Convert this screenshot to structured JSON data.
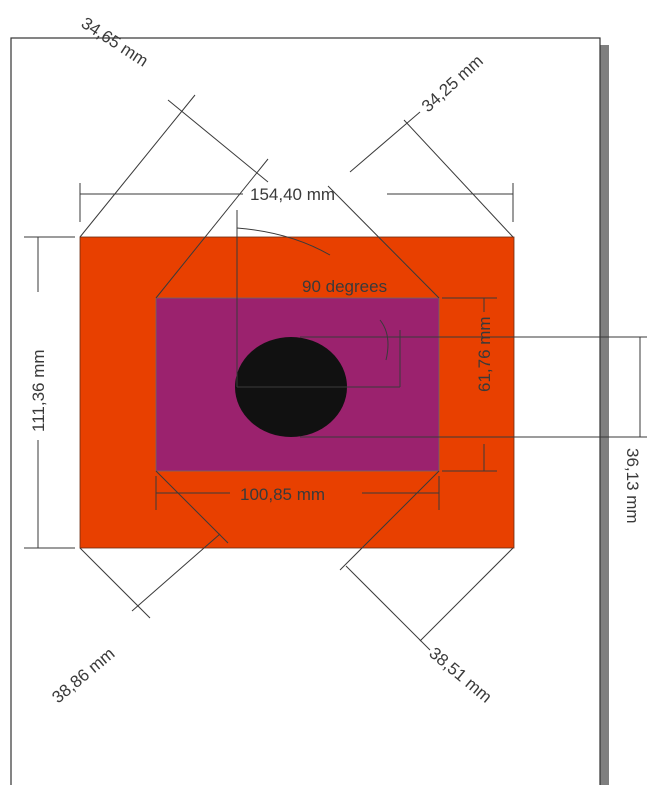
{
  "colors": {
    "page": "#ffffff",
    "page_border": "#333333",
    "page_shadow": "#7f7f7f",
    "outer_rect": "#e84000",
    "inner_rect": "#9b226e",
    "circle": "#111111",
    "dimension_line": "#3a3a3a"
  },
  "dimensions": {
    "outer_width": "154,40 mm",
    "outer_height": "111,36 mm",
    "inner_width": "100,85 mm",
    "inner_height": "61,76 mm",
    "circle_size": "36,13 mm",
    "angle": "90 degrees",
    "diag_top_left": "34,65 mm",
    "diag_top_right": "34,25 mm",
    "diag_bottom_left": "38,86 mm",
    "diag_bottom_right": "38,51 mm"
  }
}
